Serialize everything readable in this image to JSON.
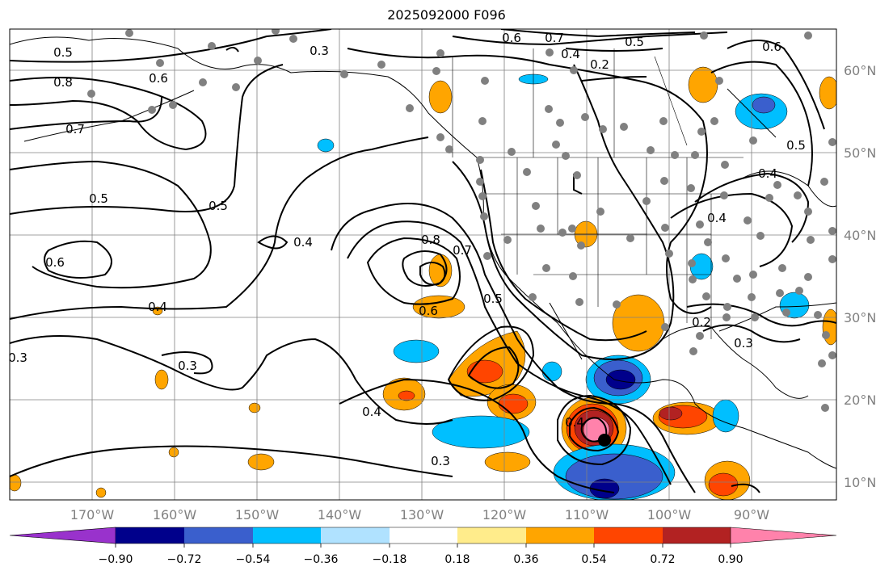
{
  "title": "2025092000 F096",
  "map": {
    "lon_labels": [
      "170°W",
      "160°W",
      "150°W",
      "140°W",
      "130°W",
      "120°W",
      "110°W",
      "100°W",
      "90°W"
    ],
    "lat_labels": [
      "60°N",
      "50°N",
      "40°N",
      "30°N",
      "20°N",
      "10°N"
    ],
    "contour_labels": [
      "0.5",
      "0.8",
      "0.7",
      "0.6",
      "0.5",
      "0.5",
      "0.6",
      "0.4",
      "0.3",
      "0.3",
      "0.4",
      "0.3",
      "0.4",
      "0.8",
      "0.7",
      "0.6",
      "0.5",
      "0.4",
      "0.3",
      "0.6",
      "0.7",
      "0.5",
      "0.4",
      "0.2",
      "0.6",
      "0.5",
      "0.4",
      "0.3",
      "0.2",
      "0.4"
    ],
    "colors": {
      "purple": "#9932CC",
      "navy": "#00008B",
      "blue": "#3A5FCD",
      "deepskyblue": "#00BFFF",
      "lightblue": "#B0E2FF",
      "white": "#FFFFFF",
      "yellow": "#FFEC8B",
      "orange": "#FFA500",
      "orangered": "#FF4500",
      "firebrick": "#B22222",
      "pink": "#FF82AB",
      "station": "#808080",
      "coast": "#000000",
      "grid": "#808080"
    }
  },
  "colorbar": {
    "colors": [
      "#9932CC",
      "#00008B",
      "#3A5FCD",
      "#00BFFF",
      "#B0E2FF",
      "#FFFFFF",
      "#FFEC8B",
      "#FFA500",
      "#FF4500",
      "#B22222",
      "#FF82AB"
    ],
    "tick_labels": [
      "−0.90",
      "−0.72",
      "−0.54",
      "−0.36",
      "−0.18",
      "0.18",
      "0.36",
      "0.54",
      "0.72",
      "0.90"
    ]
  }
}
